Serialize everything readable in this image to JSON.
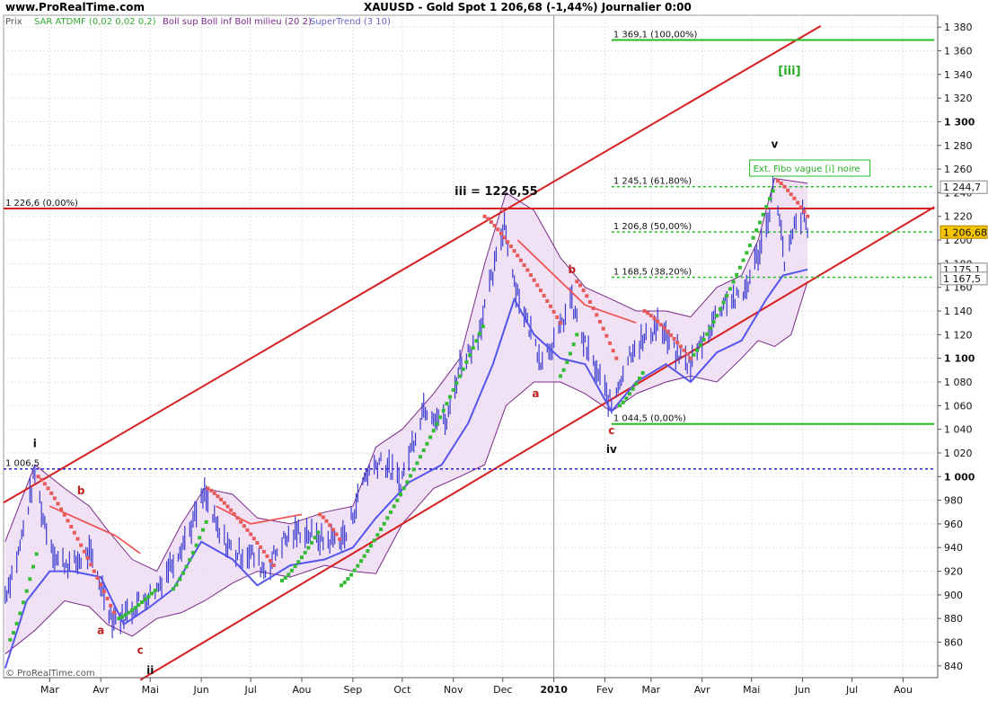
{
  "header": {
    "site": "www.ProRealTime.com",
    "title": "XAUUSD - Gold Spot   1 206,68 (-1,44%)   Journalier  0:00"
  },
  "legend": {
    "prix": "Prix",
    "sar": "SAR ATDMF (0,02 0,02 0,2)",
    "boll": "Boll sup Boll inf Boll milieu (20 2)",
    "supertrend": "SuperTrend (3 10)"
  },
  "copyright": "© ProRealTime.com",
  "colors": {
    "price": "#3b3bd0",
    "sar_up": "#33bb33",
    "sar_down": "#e85a5a",
    "boll_fill": "#ead6f0",
    "boll_line": "#7a2a8a",
    "st_up": "#5555ee",
    "st_down": "#ee5555",
    "channel": "#d62020",
    "fibo": "#22bb22",
    "level_blue": "#2222cc"
  },
  "chart_data": {
    "type": "line",
    "title": "XAUUSD - Gold Spot",
    "ylim": [
      830,
      1390
    ],
    "yticks": [
      840,
      860,
      880,
      900,
      920,
      940,
      960,
      980,
      1000,
      1020,
      1040,
      1060,
      1080,
      1100,
      1120,
      1140,
      1160,
      1180,
      1200,
      1220,
      1240,
      1260,
      1280,
      1300,
      1320,
      1340,
      1360,
      1380
    ],
    "ytick_labels": [
      "840",
      "860",
      "880",
      "900",
      "920",
      "940",
      "960",
      "980",
      "1 000",
      "1 020",
      "1 040",
      "1 060",
      "1 080",
      "1 100",
      "1 120",
      "1 140",
      "1 160",
      "1 180",
      "1 200",
      "1 220",
      "1 240",
      "1 260",
      "1 280",
      "1 300",
      "1 320",
      "1 340",
      "1 360",
      "1 380"
    ],
    "ytick_bold": [
      "1 000",
      "1 100",
      "1 300"
    ],
    "x_months": [
      {
        "label": "Mar",
        "date": "2009-03-01",
        "bold": false
      },
      {
        "label": "Avr",
        "date": "2009-04-01",
        "bold": false
      },
      {
        "label": "Mai",
        "date": "2009-05-01",
        "bold": false
      },
      {
        "label": "Jun",
        "date": "2009-06-01",
        "bold": false
      },
      {
        "label": "Jul",
        "date": "2009-07-01",
        "bold": false
      },
      {
        "label": "Aou",
        "date": "2009-08-01",
        "bold": false
      },
      {
        "label": "Sep",
        "date": "2009-09-01",
        "bold": false
      },
      {
        "label": "Oct",
        "date": "2009-10-01",
        "bold": false
      },
      {
        "label": "Nov",
        "date": "2009-11-01",
        "bold": false
      },
      {
        "label": "Dec",
        "date": "2009-12-01",
        "bold": false
      },
      {
        "label": "2010",
        "date": "2010-01-01",
        "bold": true
      },
      {
        "label": "Fev",
        "date": "2010-02-01",
        "bold": false
      },
      {
        "label": "Mar",
        "date": "2010-03-01",
        "bold": false
      },
      {
        "label": "Avr",
        "date": "2010-04-01",
        "bold": false
      },
      {
        "label": "Mai",
        "date": "2010-05-01",
        "bold": false
      },
      {
        "label": "Jun",
        "date": "2010-06-01",
        "bold": false
      },
      {
        "label": "Jul",
        "date": "2010-07-01",
        "bold": false
      },
      {
        "label": "Aou",
        "date": "2010-08-01",
        "bold": false
      }
    ],
    "xrange": [
      "2009-02-01",
      "2010-08-22"
    ],
    "price_path": [
      [
        "2009-02-02",
        900
      ],
      [
        "2009-02-10",
        935
      ],
      [
        "2009-02-20",
        1003
      ],
      [
        "2009-02-25",
        965
      ],
      [
        "2009-03-05",
        930
      ],
      [
        "2009-03-15",
        925
      ],
      [
        "2009-03-25",
        935
      ],
      [
        "2009-04-02",
        905
      ],
      [
        "2009-04-08",
        880
      ],
      [
        "2009-04-15",
        882
      ],
      [
        "2009-04-25",
        895
      ],
      [
        "2009-05-05",
        905
      ],
      [
        "2009-05-15",
        930
      ],
      [
        "2009-05-25",
        955
      ],
      [
        "2009-06-03",
        985
      ],
      [
        "2009-06-12",
        950
      ],
      [
        "2009-06-22",
        935
      ],
      [
        "2009-07-01",
        935
      ],
      [
        "2009-07-10",
        920
      ],
      [
        "2009-07-20",
        945
      ],
      [
        "2009-08-01",
        955
      ],
      [
        "2009-08-15",
        945
      ],
      [
        "2009-08-28",
        950
      ],
      [
        "2009-09-08",
        1000
      ],
      [
        "2009-09-18",
        1015
      ],
      [
        "2009-09-30",
        995
      ],
      [
        "2009-10-14",
        1060
      ],
      [
        "2009-10-28",
        1045
      ],
      [
        "2009-11-05",
        1095
      ],
      [
        "2009-11-15",
        1115
      ],
      [
        "2009-11-25",
        1170
      ],
      [
        "2009-12-02",
        1215
      ],
      [
        "2009-12-08",
        1165
      ],
      [
        "2009-12-16",
        1130
      ],
      [
        "2009-12-24",
        1100
      ],
      [
        "2010-01-04",
        1120
      ],
      [
        "2010-01-11",
        1150
      ],
      [
        "2010-01-20",
        1110
      ],
      [
        "2010-01-28",
        1085
      ],
      [
        "2010-02-05",
        1060
      ],
      [
        "2010-02-12",
        1090
      ],
      [
        "2010-02-18",
        1110
      ],
      [
        "2010-02-25",
        1115
      ],
      [
        "2010-03-05",
        1130
      ],
      [
        "2010-03-15",
        1105
      ],
      [
        "2010-03-25",
        1095
      ],
      [
        "2010-04-05",
        1125
      ],
      [
        "2010-04-15",
        1150
      ],
      [
        "2010-04-25",
        1150
      ],
      [
        "2010-05-03",
        1180
      ],
      [
        "2010-05-10",
        1210
      ],
      [
        "2010-05-14",
        1245
      ],
      [
        "2010-05-18",
        1222
      ],
      [
        "2010-05-21",
        1175
      ],
      [
        "2010-05-27",
        1210
      ],
      [
        "2010-06-01",
        1222
      ],
      [
        "2010-06-04",
        1206.68
      ]
    ],
    "bollinger": {
      "upper": [
        [
          "2009-02-02",
          945
        ],
        [
          "2009-02-20",
          1010
        ],
        [
          "2009-03-10",
          990
        ],
        [
          "2009-03-25",
          975
        ],
        [
          "2009-04-05",
          955
        ],
        [
          "2009-04-20",
          930
        ],
        [
          "2009-05-05",
          920
        ],
        [
          "2009-05-20",
          960
        ],
        [
          "2009-06-03",
          990
        ],
        [
          "2009-06-20",
          985
        ],
        [
          "2009-07-05",
          965
        ],
        [
          "2009-07-25",
          960
        ],
        [
          "2009-08-15",
          970
        ],
        [
          "2009-09-01",
          975
        ],
        [
          "2009-09-15",
          1025
        ],
        [
          "2009-10-01",
          1040
        ],
        [
          "2009-10-20",
          1070
        ],
        [
          "2009-11-05",
          1100
        ],
        [
          "2009-11-20",
          1180
        ],
        [
          "2009-12-03",
          1240
        ],
        [
          "2009-12-20",
          1225
        ],
        [
          "2010-01-05",
          1185
        ],
        [
          "2010-01-20",
          1160
        ],
        [
          "2010-02-05",
          1150
        ],
        [
          "2010-02-20",
          1140
        ],
        [
          "2010-03-10",
          1140
        ],
        [
          "2010-03-25",
          1135
        ],
        [
          "2010-04-10",
          1160
        ],
        [
          "2010-04-25",
          1170
        ],
        [
          "2010-05-05",
          1200
        ],
        [
          "2010-05-15",
          1252
        ],
        [
          "2010-05-25",
          1250
        ],
        [
          "2010-06-04",
          1248
        ]
      ],
      "lower": [
        [
          "2009-02-02",
          850
        ],
        [
          "2009-02-20",
          870
        ],
        [
          "2009-03-10",
          895
        ],
        [
          "2009-03-25",
          890
        ],
        [
          "2009-04-05",
          875
        ],
        [
          "2009-04-20",
          865
        ],
        [
          "2009-05-05",
          880
        ],
        [
          "2009-05-20",
          885
        ],
        [
          "2009-06-03",
          895
        ],
        [
          "2009-06-20",
          910
        ],
        [
          "2009-07-05",
          920
        ],
        [
          "2009-07-25",
          915
        ],
        [
          "2009-08-15",
          925
        ],
        [
          "2009-09-01",
          920
        ],
        [
          "2009-09-15",
          918
        ],
        [
          "2009-10-01",
          960
        ],
        [
          "2009-10-20",
          990
        ],
        [
          "2009-11-05",
          1000
        ],
        [
          "2009-11-20",
          1010
        ],
        [
          "2009-12-03",
          1060
        ],
        [
          "2009-12-20",
          1080
        ],
        [
          "2010-01-05",
          1080
        ],
        [
          "2010-01-20",
          1070
        ],
        [
          "2010-02-05",
          1055
        ],
        [
          "2010-02-20",
          1070
        ],
        [
          "2010-03-10",
          1080
        ],
        [
          "2010-03-25",
          1085
        ],
        [
          "2010-04-10",
          1080
        ],
        [
          "2010-04-25",
          1100
        ],
        [
          "2010-05-05",
          1115
        ],
        [
          "2010-05-15",
          1110
        ],
        [
          "2010-05-25",
          1120
        ],
        [
          "2010-06-04",
          1165
        ]
      ]
    },
    "supertrend": [
      [
        "2009-02-02",
        838
      ],
      [
        "2009-02-15",
        895
      ],
      [
        "2009-03-01",
        920
      ],
      [
        "2009-03-15",
        920
      ],
      [
        "2009-04-01",
        915
      ],
      [
        "2009-04-15",
        875
      ],
      [
        "2009-05-01",
        890
      ],
      [
        "2009-05-15",
        905
      ],
      [
        "2009-06-01",
        945
      ],
      [
        "2009-06-20",
        930
      ],
      [
        "2009-07-05",
        908
      ],
      [
        "2009-07-25",
        925
      ],
      [
        "2009-08-15",
        930
      ],
      [
        "2009-09-01",
        940
      ],
      [
        "2009-09-15",
        965
      ],
      [
        "2009-10-05",
        995
      ],
      [
        "2009-10-25",
        1010
      ],
      [
        "2009-11-10",
        1045
      ],
      [
        "2009-11-25",
        1095
      ],
      [
        "2009-12-08",
        1150
      ],
      [
        "2009-12-20",
        1120
      ],
      [
        "2010-01-05",
        1100
      ],
      [
        "2010-01-20",
        1095
      ],
      [
        "2010-02-05",
        1055
      ],
      [
        "2010-02-20",
        1080
      ],
      [
        "2010-03-10",
        1095
      ],
      [
        "2010-03-25",
        1080
      ],
      [
        "2010-04-10",
        1105
      ],
      [
        "2010-04-25",
        1115
      ],
      [
        "2010-05-10",
        1150
      ],
      [
        "2010-05-20",
        1170
      ],
      [
        "2010-06-04",
        1175.1
      ]
    ],
    "supertrend_down": [
      [
        "2009-03-01",
        975
      ],
      [
        "2009-04-10",
        950
      ],
      [
        "2009-04-25",
        935
      ],
      [
        "2009-06-10",
        975
      ],
      [
        "2009-07-01",
        960
      ],
      [
        "2009-08-01",
        968
      ],
      [
        "2009-12-10",
        1200
      ],
      [
        "2010-01-20",
        1145
      ],
      [
        "2010-02-20",
        1130
      ]
    ],
    "sar_points": {
      "up_ranges": [
        [
          "2009-02-05",
          "2009-02-22",
          862,
          940
        ],
        [
          "2009-04-12",
          "2009-05-05",
          880,
          905
        ],
        [
          "2009-05-15",
          "2009-06-05",
          905,
          965
        ],
        [
          "2009-07-20",
          "2009-08-12",
          912,
          955
        ],
        [
          "2009-08-25",
          "2009-11-20",
          908,
          1130
        ],
        [
          "2010-01-05",
          "2010-01-15",
          1085,
          1120
        ],
        [
          "2010-02-10",
          "2010-02-25",
          1060,
          1090
        ],
        [
          "2010-03-25",
          "2010-05-15",
          1100,
          1245
        ]
      ],
      "down_ranges": [
        [
          "2009-02-22",
          "2009-04-10",
          1000,
          882
        ],
        [
          "2009-06-05",
          "2009-07-15",
          990,
          925
        ],
        [
          "2009-08-12",
          "2009-08-25",
          968,
          945
        ],
        [
          "2009-11-20",
          "2010-01-05",
          1220,
          1130
        ],
        [
          "2010-01-15",
          "2010-02-08",
          1165,
          1100
        ],
        [
          "2010-02-25",
          "2010-03-25",
          1140,
          1100
        ],
        [
          "2010-05-17",
          "2010-06-04",
          1250,
          1220
        ]
      ]
    },
    "channel_upper": [
      [
        "2009-02-01",
        978
      ],
      [
        "2010-06-12",
        1381
      ]
    ],
    "channel_lower": [
      [
        "2009-04-25",
        828
      ],
      [
        "2010-08-20",
        1228
      ]
    ],
    "h_lines": [
      {
        "label": "1 226,6 (0,00%)",
        "y": 1226.6,
        "from": "2009-02-01",
        "to": "2010-08-20",
        "color": "red",
        "style": "solid"
      },
      {
        "label": "1 006,5",
        "y": 1006.5,
        "from": "2009-02-01",
        "to": "2010-08-20",
        "color": "blue",
        "style": "dotted"
      },
      {
        "label": "1 369,1 (100,00%)",
        "y": 1369.1,
        "from": "2010-02-05",
        "to": "2010-08-20",
        "color": "green",
        "style": "solid"
      },
      {
        "label": "1 245,1 (61,80%)",
        "y": 1245.1,
        "from": "2010-02-05",
        "to": "2010-08-20",
        "color": "green",
        "style": "dotted"
      },
      {
        "label": "1 206,8 (50,00%)",
        "y": 1206.8,
        "from": "2010-02-05",
        "to": "2010-08-20",
        "color": "green",
        "style": "dotted"
      },
      {
        "label": "1 168,5 (38,20%)",
        "y": 1168.5,
        "from": "2010-02-05",
        "to": "2010-08-20",
        "color": "green",
        "style": "dotted"
      },
      {
        "label": "1 044,5 (0,00%)",
        "y": 1044.5,
        "from": "2010-02-05",
        "to": "2010-08-20",
        "color": "green",
        "style": "solid"
      }
    ],
    "wave_labels": [
      {
        "text": "i",
        "date": "2009-02-20",
        "y": 1025,
        "color": "#111",
        "bold": true
      },
      {
        "text": "b",
        "date": "2009-03-20",
        "y": 985,
        "color": "#c02020",
        "bold": true
      },
      {
        "text": "a",
        "date": "2009-04-01",
        "y": 867,
        "color": "#c02020",
        "bold": true
      },
      {
        "text": "c",
        "date": "2009-04-25",
        "y": 850,
        "color": "#c02020",
        "bold": true
      },
      {
        "text": "ii",
        "date": "2009-05-01",
        "y": 833,
        "color": "#111",
        "bold": true
      },
      {
        "text": "iii = 1226,55",
        "date": "2009-11-27",
        "y": 1238,
        "color": "#111",
        "bold": true
      },
      {
        "text": "b",
        "date": "2010-01-12",
        "y": 1172,
        "color": "#c02020",
        "bold": true
      },
      {
        "text": "a",
        "date": "2009-12-21",
        "y": 1067,
        "color": "#c02020",
        "bold": true
      },
      {
        "text": "c",
        "date": "2010-02-05",
        "y": 1036,
        "color": "#c02020",
        "bold": true
      },
      {
        "text": "iv",
        "date": "2010-02-05",
        "y": 1020,
        "color": "#111",
        "bold": true
      },
      {
        "text": "v",
        "date": "2010-05-15",
        "y": 1278,
        "color": "#111",
        "bold": true
      },
      {
        "text": "[iii]",
        "date": "2010-05-24",
        "y": 1340,
        "color": "#22aa22",
        "bold": true
      }
    ],
    "annotation_box": {
      "text": "Ext. Fibo vague [i] noire",
      "date": "2010-05-26",
      "y": 1257
    },
    "price_tags": [
      {
        "text": "1 244,7",
        "y": 1244.7,
        "bg": "#ffffff",
        "fg": "#111",
        "border": "#888"
      },
      {
        "text": "1 206,68",
        "y": 1206.68,
        "bg": "#f5c400",
        "fg": "#111",
        "border": "#b08800"
      },
      {
        "text": "1 175,1",
        "y": 1175.1,
        "bg": "#ffffff",
        "fg": "#111",
        "border": "#888"
      },
      {
        "text": "1 167,5",
        "y": 1167.5,
        "bg": "#ffffff",
        "fg": "#111",
        "border": "#888"
      }
    ]
  }
}
